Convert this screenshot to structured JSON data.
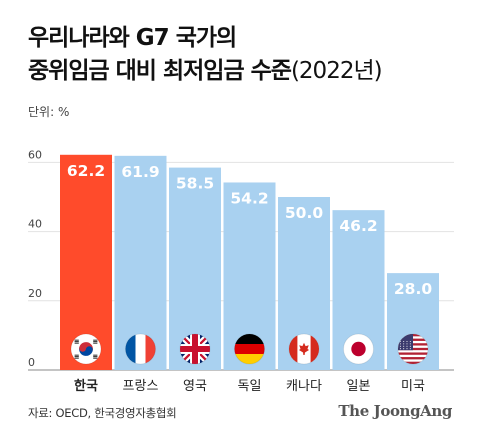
{
  "header": {
    "title_line1": "우리나라와 G7 국가의",
    "title_line2": "중위임금 대비 최저임금 수준",
    "title_year": "(2022년)",
    "unit": "단위: %"
  },
  "footer": {
    "source": "자료: OECD, 한국경영자총협회",
    "brand": "The JoongAng"
  },
  "colors": {
    "highlight": "#FF4B2B",
    "bar": "#A9D1F0",
    "text": "#222222"
  },
  "chart_data": {
    "type": "bar",
    "categories": [
      "한국",
      "프랑스",
      "영국",
      "독일",
      "캐나다",
      "일본",
      "미국"
    ],
    "values": [
      62.2,
      61.9,
      58.5,
      54.2,
      50.0,
      46.2,
      28.0
    ],
    "value_labels": [
      "62.2",
      "61.9",
      "58.5",
      "54.2",
      "50.0",
      "46.2",
      "28.0"
    ],
    "flags": [
      "south-korea-flag-icon",
      "france-flag-icon",
      "uk-flag-icon",
      "germany-flag-icon",
      "canada-flag-icon",
      "japan-flag-icon",
      "usa-flag-icon"
    ],
    "highlight_index": 0,
    "yticks": [
      0,
      20,
      40,
      60
    ],
    "ylim": [
      0,
      65
    ],
    "grid": true
  }
}
